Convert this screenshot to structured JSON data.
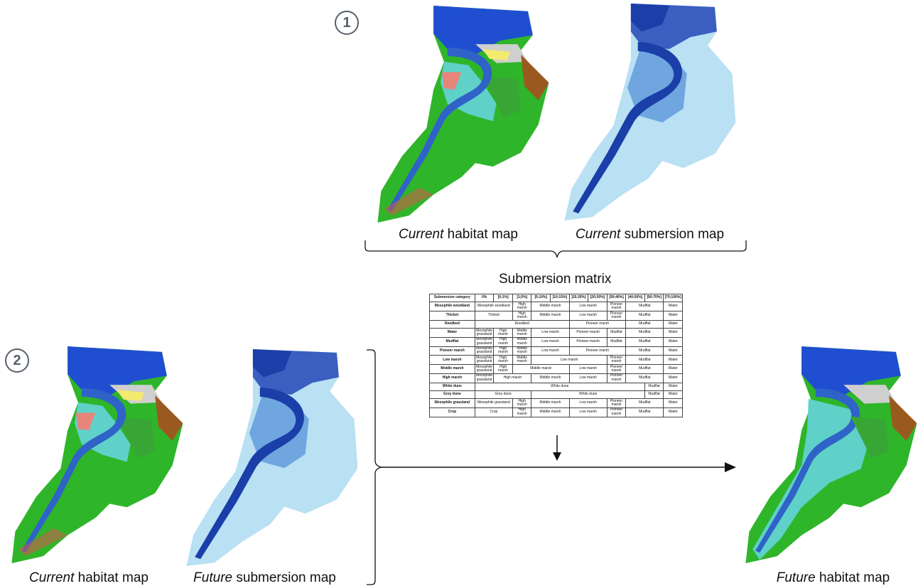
{
  "steps": {
    "one": "1",
    "two": "2"
  },
  "captions": {
    "top_habitat": {
      "prefix": "Current",
      "rest": " habitat map"
    },
    "top_submersion": {
      "prefix": "Current",
      "rest": " submersion map"
    },
    "bottom_habitat": {
      "prefix": "Current",
      "rest": " habitat map"
    },
    "bottom_submersion": {
      "prefix": "Future",
      "rest": " submersion map"
    },
    "result_habitat": {
      "prefix": "Future",
      "rest": " habitat map"
    }
  },
  "matrix": {
    "title": "Submersion matrix",
    "header": [
      "Submersion category",
      "0%",
      "]0;1%]",
      "]1;5%]",
      "]5;10%]",
      "]10;15%]",
      "]15;20%]",
      "]20;30%]",
      "]30;40%]",
      "]40;50%]",
      "]50;70%]",
      "]70;100%]"
    ],
    "rows": [
      {
        "name": "Mesophile woodland",
        "cells": [
          {
            "t": "Mesophile woodland",
            "s": 2
          },
          {
            "t": "High marsh",
            "s": 1
          },
          {
            "t": "Middle marsh",
            "s": 2
          },
          {
            "t": "Low marsh",
            "s": 2
          },
          {
            "t": "Pioneer marsh",
            "s": 1
          },
          {
            "t": "Mudflat",
            "s": 2
          },
          {
            "t": "Water",
            "s": 1
          }
        ]
      },
      {
        "name": "Thicket",
        "cells": [
          {
            "t": "Thicket",
            "s": 2
          },
          {
            "t": "High marsh",
            "s": 1
          },
          {
            "t": "Middle marsh",
            "s": 2
          },
          {
            "t": "Low marsh",
            "s": 2
          },
          {
            "t": "Pioneer marsh",
            "s": 1
          },
          {
            "t": "Mudflat",
            "s": 2
          },
          {
            "t": "Water",
            "s": 1
          }
        ]
      },
      {
        "name": "Reedbed",
        "cells": [
          {
            "t": "Reedbed",
            "s": 5
          },
          {
            "t": "Pioneer marsh",
            "s": 3
          },
          {
            "t": "Mudflat",
            "s": 2
          },
          {
            "t": "Water",
            "s": 1
          }
        ]
      },
      {
        "name": "Water",
        "cells": [
          {
            "t": "Mesophile grassland",
            "s": 1
          },
          {
            "t": "High marsh",
            "s": 1
          },
          {
            "t": "Middle marsh",
            "s": 1
          },
          {
            "t": "Low marsh",
            "s": 2
          },
          {
            "t": "Pioneer marsh",
            "s": 2
          },
          {
            "t": "Mudflat",
            "s": 1
          },
          {
            "t": "Mudflat",
            "s": 2
          },
          {
            "t": "Water",
            "s": 1
          }
        ]
      },
      {
        "name": "Mudflat",
        "cells": [
          {
            "t": "Mesophile grassland",
            "s": 1
          },
          {
            "t": "High marsh",
            "s": 1
          },
          {
            "t": "Middle marsh",
            "s": 1
          },
          {
            "t": "Low marsh",
            "s": 2
          },
          {
            "t": "Pioneer marsh",
            "s": 2
          },
          {
            "t": "Mudflat",
            "s": 1
          },
          {
            "t": "Mudflat",
            "s": 2
          },
          {
            "t": "Water",
            "s": 1
          }
        ]
      },
      {
        "name": "Pioneer marsh",
        "cells": [
          {
            "t": "Mesophile grassland",
            "s": 1
          },
          {
            "t": "High marsh",
            "s": 1
          },
          {
            "t": "Middle marsh",
            "s": 1
          },
          {
            "t": "Low marsh",
            "s": 2
          },
          {
            "t": "Pioneer marsh",
            "s": 3
          },
          {
            "t": "Mudflat",
            "s": 2
          },
          {
            "t": "Water",
            "s": 1
          }
        ]
      },
      {
        "name": "Low marsh",
        "cells": [
          {
            "t": "Mesophile grassland",
            "s": 1
          },
          {
            "t": "High marsh",
            "s": 1
          },
          {
            "t": "Middle marsh",
            "s": 1
          },
          {
            "t": "Low marsh",
            "s": 4
          },
          {
            "t": "Pioneer marsh",
            "s": 1
          },
          {
            "t": "Mudflat",
            "s": 2
          },
          {
            "t": "Water",
            "s": 1
          }
        ]
      },
      {
        "name": "Middle marsh",
        "cells": [
          {
            "t": "Mesophile grassland",
            "s": 1
          },
          {
            "t": "High marsh",
            "s": 1
          },
          {
            "t": "Middle marsh",
            "s": 3
          },
          {
            "t": "Low marsh",
            "s": 2
          },
          {
            "t": "Pioneer marsh",
            "s": 1
          },
          {
            "t": "Mudflat",
            "s": 2
          },
          {
            "t": "Water",
            "s": 1
          }
        ]
      },
      {
        "name": "High marsh",
        "cells": [
          {
            "t": "Mesophile grassland",
            "s": 1
          },
          {
            "t": "High marsh",
            "s": 2
          },
          {
            "t": "Middle marsh",
            "s": 2
          },
          {
            "t": "Low marsh",
            "s": 2
          },
          {
            "t": "Pioneer marsh",
            "s": 1
          },
          {
            "t": "Mudflat",
            "s": 2
          },
          {
            "t": "Water",
            "s": 1
          }
        ]
      },
      {
        "name": "White dune",
        "cells": [
          {
            "t": "White dune",
            "s": 9
          },
          {
            "t": "Mudflat",
            "s": 1
          },
          {
            "t": "Water",
            "s": 1
          }
        ]
      },
      {
        "name": "Grey dune",
        "cells": [
          {
            "t": "Grey dune",
            "s": 3
          },
          {
            "t": "White dune",
            "s": 6
          },
          {
            "t": "Mudflat",
            "s": 1
          },
          {
            "t": "Water",
            "s": 1
          }
        ]
      },
      {
        "name": "Mesophile grassland",
        "cells": [
          {
            "t": "Mesophile grassland",
            "s": 2
          },
          {
            "t": "High marsh",
            "s": 1
          },
          {
            "t": "Middle marsh",
            "s": 2
          },
          {
            "t": "Low marsh",
            "s": 2
          },
          {
            "t": "Pioneer marsh",
            "s": 1
          },
          {
            "t": "Mudflat",
            "s": 2
          },
          {
            "t": "Water",
            "s": 1
          }
        ]
      },
      {
        "name": "Crop",
        "cells": [
          {
            "t": "Crop",
            "s": 2
          },
          {
            "t": "High marsh",
            "s": 1
          },
          {
            "t": "Middle marsh",
            "s": 2
          },
          {
            "t": "Low marsh",
            "s": 2
          },
          {
            "t": "Pioneer marsh",
            "s": 1
          },
          {
            "t": "Mudflat",
            "s": 2
          },
          {
            "t": "Water",
            "s": 1
          }
        ]
      }
    ]
  },
  "colors": {
    "habitat_land": "#2fb52a",
    "habitat_river": "#2f63c8",
    "habitat_sea": "#1f4fd0",
    "habitat_sand": "#cfcfcf",
    "habitat_marsh": "#5fd1c8",
    "habitat_salmon": "#e8857a",
    "habitat_brown": "#9a5a1f",
    "habitat_yellow": "#f3ea70",
    "submersion_light": "#b9e0f3",
    "submersion_mid": "#6fa6df",
    "submersion_dark": "#1a3fa8",
    "arrow": "#111111",
    "step_circle": "#55606a"
  }
}
